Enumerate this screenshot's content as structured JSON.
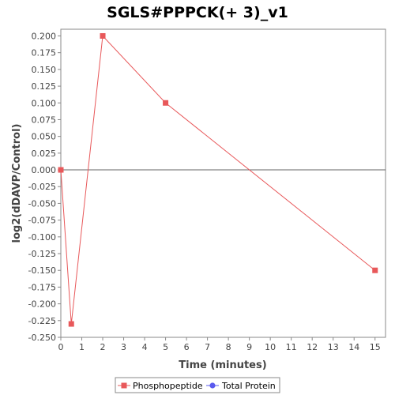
{
  "chart_data": {
    "type": "line",
    "title": "SGLS#PPPCK(+ 3)_v1",
    "xlabel": "Time (minutes)",
    "ylabel": "log2(dDAVP/Control)",
    "xlim": [
      0,
      15.5
    ],
    "ylim": [
      -0.25,
      0.21
    ],
    "x_ticks": [
      0,
      1,
      2,
      3,
      4,
      5,
      6,
      7,
      8,
      9,
      10,
      11,
      12,
      13,
      14,
      15
    ],
    "y_ticks": [
      0.2,
      0.175,
      0.15,
      0.125,
      0.1,
      0.075,
      0.05,
      0.025,
      0.0,
      -0.025,
      -0.05,
      -0.075,
      -0.1,
      -0.125,
      -0.15,
      -0.175,
      -0.2,
      -0.225,
      -0.25
    ],
    "y_tick_labels": [
      "0.200",
      "0.175",
      "0.150",
      "0.125",
      "0.100",
      "0.075",
      "0.050",
      "0.025",
      "0.000",
      "-0.025",
      "-0.050",
      "-0.075",
      "-0.100",
      "-0.125",
      "-0.150",
      "-0.175",
      "-0.200",
      "-0.225",
      "-0.250"
    ],
    "zero_line": true,
    "grid": false,
    "legend_position": "bottom",
    "series": [
      {
        "name": "Phosphopeptide",
        "color": "#e8585a",
        "marker": "square",
        "x": [
          0,
          0.5,
          2,
          5,
          15
        ],
        "y": [
          0.0,
          -0.23,
          0.2,
          0.1,
          -0.15
        ]
      },
      {
        "name": "Total Protein",
        "color": "#5a5aee",
        "marker": "circle",
        "x": [],
        "y": []
      }
    ]
  }
}
